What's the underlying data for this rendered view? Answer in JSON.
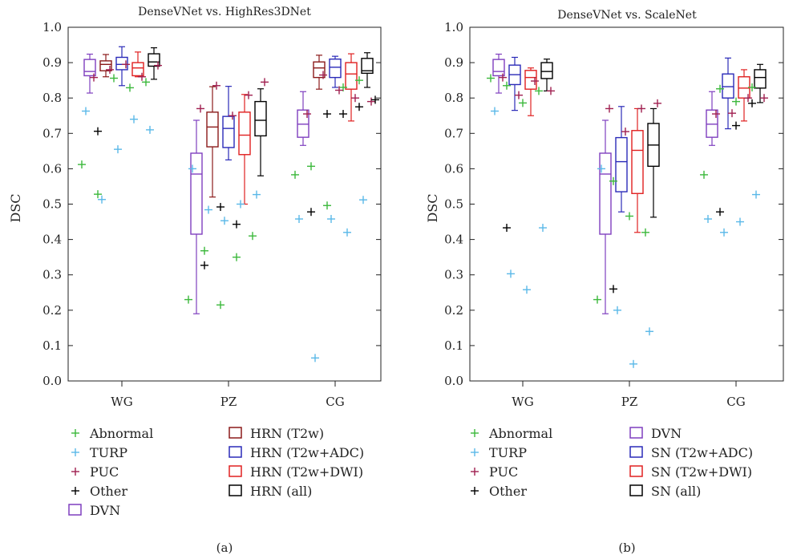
{
  "chart_data": [
    {
      "type": "box",
      "title": "DenseVNet vs. HighRes3DNet",
      "ylabel": "DSC",
      "ylim": [
        0,
        1
      ],
      "yticks": [
        "0.0",
        "0.1",
        "0.2",
        "0.3",
        "0.4",
        "0.5",
        "0.6",
        "0.7",
        "0.8",
        "0.9",
        "1.0"
      ],
      "categories": [
        "WG",
        "PZ",
        "CG"
      ],
      "panel_label": "(a)",
      "series": [
        {
          "name": "DVN",
          "color": "#7f3fbf",
          "boxes": [
            [
              0.814,
              0.863,
              0.875,
              0.909,
              0.924
            ],
            [
              0.19,
              0.415,
              0.585,
              0.644,
              0.737
            ],
            [
              0.666,
              0.689,
              0.726,
              0.766,
              0.818
            ]
          ]
        },
        {
          "name": "HRN (T2w)",
          "color": "#8b1a1a",
          "boxes": [
            [
              0.86,
              0.877,
              0.895,
              0.905,
              0.923
            ],
            [
              0.52,
              0.662,
              0.718,
              0.76,
              0.832
            ],
            [
              0.825,
              0.858,
              0.885,
              0.902,
              0.921
            ]
          ]
        },
        {
          "name": "HRN (T2w+ADC)",
          "color": "#2a2ab8",
          "boxes": [
            [
              0.835,
              0.88,
              0.895,
              0.915,
              0.945
            ],
            [
              0.625,
              0.66,
              0.714,
              0.748,
              0.833
            ],
            [
              0.83,
              0.858,
              0.887,
              0.91,
              0.918
            ]
          ]
        },
        {
          "name": "HRN (T2w+DWI)",
          "color": "#e02020",
          "boxes": [
            [
              0.86,
              0.863,
              0.885,
              0.9,
              0.93
            ],
            [
              0.5,
              0.64,
              0.695,
              0.76,
              0.81
            ],
            [
              0.735,
              0.825,
              0.868,
              0.9,
              0.925
            ]
          ]
        },
        {
          "name": "HRN (all)",
          "color": "#000000",
          "boxes": [
            [
              0.853,
              0.89,
              0.902,
              0.925,
              0.942
            ],
            [
              0.58,
              0.693,
              0.737,
              0.79,
              0.826
            ],
            [
              0.83,
              0.87,
              0.877,
              0.912,
              0.928
            ]
          ]
        }
      ],
      "markers": [
        {
          "name": "Abnormal",
          "color": "#3cb83c",
          "points": [
            [
              0,
              0.612
            ],
            [
              0,
              0.528
            ],
            [
              0,
              0.856
            ],
            [
              0,
              0.829
            ],
            [
              0,
              0.845
            ],
            [
              1,
              0.23
            ],
            [
              1,
              0.368
            ],
            [
              1,
              0.215
            ],
            [
              1,
              0.35
            ],
            [
              1,
              0.41
            ],
            [
              2,
              0.583
            ],
            [
              2,
              0.607
            ],
            [
              2,
              0.496
            ],
            [
              2,
              0.83
            ],
            [
              2,
              0.85
            ]
          ]
        },
        {
          "name": "TURP",
          "color": "#5ab8e8",
          "points": [
            [
              0,
              0.763
            ],
            [
              0,
              0.513
            ],
            [
              0,
              0.655
            ],
            [
              0,
              0.74
            ],
            [
              0,
              0.71
            ],
            [
              1,
              0.6
            ],
            [
              1,
              0.484
            ],
            [
              1,
              0.453
            ],
            [
              1,
              0.5
            ],
            [
              1,
              0.527
            ],
            [
              2,
              0.458
            ],
            [
              2,
              0.065
            ],
            [
              2,
              0.458
            ],
            [
              2,
              0.42
            ],
            [
              2,
              0.512
            ]
          ]
        },
        {
          "name": "PUC",
          "color": "#a02050",
          "points": [
            [
              0,
              0.858
            ],
            [
              0,
              0.88
            ],
            [
              0,
              0.895
            ],
            [
              0,
              0.86
            ],
            [
              0,
              0.892
            ],
            [
              1,
              0.77
            ],
            [
              1,
              0.835
            ],
            [
              1,
              0.75
            ],
            [
              1,
              0.808
            ],
            [
              1,
              0.845
            ],
            [
              2,
              0.755
            ],
            [
              2,
              0.865
            ],
            [
              2,
              0.822
            ],
            [
              2,
              0.8
            ],
            [
              2,
              0.79
            ]
          ]
        },
        {
          "name": "Other",
          "color": "#000000",
          "points": [
            [
              0,
              0.706
            ],
            [
              1,
              0.327
            ],
            [
              1,
              0.492
            ],
            [
              1,
              0.443
            ],
            [
              2,
              0.478
            ],
            [
              2,
              0.755
            ],
            [
              2,
              0.755
            ],
            [
              2,
              0.775
            ],
            [
              2,
              0.795
            ]
          ]
        }
      ]
    },
    {
      "type": "box",
      "title": "DenseVNet vs. ScaleNet",
      "ylabel": "DSC",
      "ylim": [
        0,
        1
      ],
      "yticks": [
        "0.0",
        "0.1",
        "0.2",
        "0.3",
        "0.4",
        "0.5",
        "0.6",
        "0.7",
        "0.8",
        "0.9",
        "1.0"
      ],
      "categories": [
        "WG",
        "PZ",
        "CG"
      ],
      "panel_label": "(b)",
      "series": [
        {
          "name": "DVN",
          "color": "#7f3fbf",
          "boxes": [
            [
              0.814,
              0.863,
              0.875,
              0.909,
              0.924
            ],
            [
              0.19,
              0.415,
              0.585,
              0.644,
              0.737
            ],
            [
              0.666,
              0.689,
              0.726,
              0.766,
              0.818
            ]
          ]
        },
        {
          "name": "SN (T2w+ADC)",
          "color": "#2a2ab8",
          "boxes": [
            [
              0.765,
              0.838,
              0.866,
              0.893,
              0.915
            ],
            [
              0.478,
              0.535,
              0.62,
              0.688,
              0.776
            ],
            [
              0.713,
              0.8,
              0.832,
              0.868,
              0.913
            ]
          ]
        },
        {
          "name": "SN (T2w+DWI)",
          "color": "#e02020",
          "boxes": [
            [
              0.75,
              0.825,
              0.858,
              0.878,
              0.885
            ],
            [
              0.42,
              0.53,
              0.652,
              0.708,
              0.77
            ],
            [
              0.735,
              0.8,
              0.828,
              0.86,
              0.88
            ]
          ]
        },
        {
          "name": "SN (all)",
          "color": "#000000",
          "boxes": [
            [
              0.82,
              0.855,
              0.875,
              0.9,
              0.91
            ],
            [
              0.463,
              0.607,
              0.667,
              0.728,
              0.77
            ],
            [
              0.787,
              0.828,
              0.858,
              0.88,
              0.895
            ]
          ]
        }
      ],
      "markers": [
        {
          "name": "Abnormal",
          "color": "#3cb83c",
          "points": [
            [
              0,
              0.856
            ],
            [
              0,
              0.835
            ],
            [
              0,
              0.786
            ],
            [
              0,
              0.82
            ],
            [
              1,
              0.23
            ],
            [
              1,
              0.565
            ],
            [
              1,
              0.466
            ],
            [
              1,
              0.42
            ],
            [
              2,
              0.583
            ],
            [
              2,
              0.826
            ],
            [
              2,
              0.79
            ],
            [
              2,
              0.83
            ]
          ]
        },
        {
          "name": "TURP",
          "color": "#5ab8e8",
          "points": [
            [
              0,
              0.763
            ],
            [
              0,
              0.303
            ],
            [
              0,
              0.258
            ],
            [
              0,
              0.433
            ],
            [
              1,
              0.6
            ],
            [
              1,
              0.2
            ],
            [
              1,
              0.048
            ],
            [
              1,
              0.14
            ],
            [
              2,
              0.458
            ],
            [
              2,
              0.42
            ],
            [
              2,
              0.45
            ],
            [
              2,
              0.527
            ]
          ]
        },
        {
          "name": "PUC",
          "color": "#a02050",
          "points": [
            [
              0,
              0.858
            ],
            [
              0,
              0.808
            ],
            [
              0,
              0.848
            ],
            [
              0,
              0.82
            ],
            [
              1,
              0.77
            ],
            [
              1,
              0.705
            ],
            [
              1,
              0.77
            ],
            [
              1,
              0.785
            ],
            [
              2,
              0.755
            ],
            [
              2,
              0.757
            ],
            [
              2,
              0.8
            ],
            [
              2,
              0.8
            ]
          ]
        },
        {
          "name": "Other",
          "color": "#000000",
          "points": [
            [
              0,
              0.433
            ],
            [
              1,
              0.26
            ],
            [
              2,
              0.478
            ],
            [
              2,
              0.722
            ],
            [
              2,
              0.785
            ]
          ]
        }
      ]
    }
  ]
}
